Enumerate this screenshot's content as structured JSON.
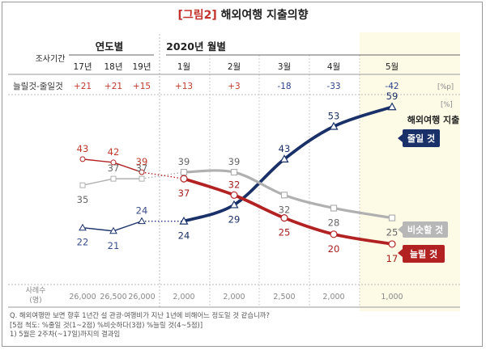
{
  "title": {
    "fig": "[그림2]",
    "text": "해외여행  지출의향"
  },
  "header": {
    "survey_label": "조사기간",
    "yearly_label": "연도별",
    "monthly_label": "2020년 월별",
    "net_label": "늘릴것-줄일것",
    "net_unit": "[%p]",
    "value_unit": "[%]",
    "sample_label_1": "사례수",
    "sample_label_2": "(명)"
  },
  "columns": [
    "17년",
    "18년",
    "19년",
    "1월",
    "2월",
    "3월",
    "4월",
    "5월"
  ],
  "net_values": [
    "+21",
    "+21",
    "+15",
    "+13",
    "+3",
    "-18",
    "-33",
    "-42"
  ],
  "samples": [
    "26,000",
    "26,500",
    "26,000",
    "2,000",
    "2,000",
    "2,500",
    "2,000",
    "1,000"
  ],
  "legend": {
    "top_title": "해외여행 지출",
    "decrease": "줄일 것",
    "same": "비슷할 것",
    "increase": "늘릴 것"
  },
  "notes": [
    "Q. 해외여행만 보면 향후 1년간 설 관광·여행비가 지난 1년에 비해어느 정도일 것 같습니까?",
    "[5점 척도: %줄일 것(1~2점) %비슷하다(3점) %늘릴 것(4~5점)]",
    "1) 5월은 2주차(~17일)까지의 결과임"
  ],
  "colors": {
    "decrease": "#1a3068",
    "same": "#b0b0b0",
    "increase": "#b22222",
    "highlight": "#fdfbe6"
  },
  "chart_data": {
    "type": "line",
    "categories": [
      "17년",
      "18년",
      "19년",
      "1월",
      "2월",
      "3월",
      "4월",
      "5월"
    ],
    "series": [
      {
        "name": "줄일 것",
        "values": [
          22,
          21,
          24,
          24,
          29,
          43,
          53,
          59
        ]
      },
      {
        "name": "비슷할 것",
        "values": [
          35,
          37,
          37,
          39,
          39,
          32,
          28,
          25
        ]
      },
      {
        "name": "늘릴 것",
        "values": [
          43,
          42,
          39,
          37,
          32,
          25,
          20,
          17
        ]
      }
    ],
    "ylabel": "[%]",
    "legend": "right"
  }
}
